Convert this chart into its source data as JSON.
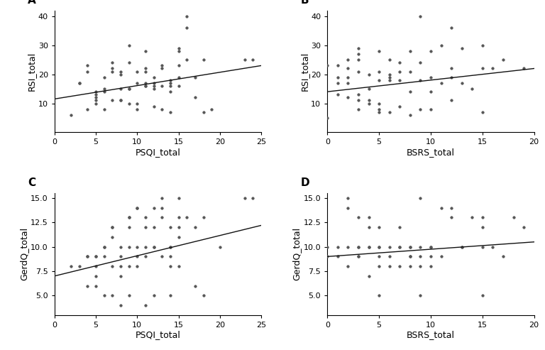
{
  "panel_A": {
    "label": "A",
    "xlabel": "PSQI_total",
    "ylabel": "RSI_total",
    "xlim": [
      0,
      25
    ],
    "ylim": [
      0,
      42
    ],
    "xticks": [
      0,
      5,
      10,
      15,
      20,
      25
    ],
    "yticks": [
      10,
      20,
      30,
      40
    ],
    "x": [
      2,
      3,
      3,
      4,
      4,
      4,
      5,
      5,
      5,
      5,
      5,
      6,
      6,
      6,
      6,
      7,
      7,
      7,
      7,
      8,
      8,
      8,
      8,
      8,
      9,
      9,
      9,
      9,
      9,
      10,
      10,
      10,
      10,
      11,
      11,
      11,
      11,
      11,
      11,
      12,
      12,
      12,
      12,
      12,
      13,
      13,
      13,
      13,
      14,
      14,
      14,
      14,
      14,
      15,
      15,
      15,
      15,
      15,
      16,
      16,
      16,
      17,
      17,
      18,
      18,
      19,
      23,
      24
    ],
    "y": [
      6,
      17,
      17,
      23,
      21,
      8,
      14,
      13,
      12,
      11,
      10,
      19,
      15,
      14,
      8,
      24,
      22,
      21,
      11,
      21,
      20,
      15,
      11,
      11,
      30,
      24,
      15,
      15,
      10,
      21,
      17,
      10,
      8,
      28,
      22,
      21,
      17,
      16,
      16,
      19,
      17,
      16,
      15,
      9,
      23,
      22,
      16,
      8,
      18,
      17,
      16,
      14,
      7,
      29,
      28,
      23,
      19,
      16,
      40,
      36,
      25,
      19,
      12,
      25,
      7,
      8,
      25,
      25
    ],
    "fit_x": [
      0,
      25
    ],
    "fit_y": [
      11.5,
      23.0
    ]
  },
  "panel_B": {
    "label": "B",
    "xlabel": "BSRS_total",
    "ylabel": "RSI_total",
    "xlim": [
      0,
      20
    ],
    "ylim": [
      0,
      42
    ],
    "xticks": [
      0,
      5,
      10,
      15,
      20
    ],
    "yticks": [
      10,
      20,
      30,
      40
    ],
    "x": [
      0,
      0,
      1,
      1,
      1,
      1,
      2,
      2,
      2,
      2,
      2,
      3,
      3,
      3,
      3,
      3,
      3,
      3,
      4,
      4,
      4,
      4,
      5,
      5,
      5,
      5,
      5,
      5,
      6,
      6,
      6,
      6,
      6,
      7,
      7,
      7,
      7,
      8,
      8,
      8,
      8,
      9,
      9,
      9,
      9,
      10,
      10,
      10,
      10,
      11,
      11,
      12,
      12,
      12,
      12,
      13,
      13,
      14,
      15,
      15,
      15,
      16,
      17,
      19
    ],
    "y": [
      23,
      5,
      23,
      19,
      17,
      13,
      25,
      22,
      19,
      17,
      12,
      29,
      27,
      25,
      21,
      13,
      11,
      8,
      20,
      15,
      11,
      10,
      28,
      21,
      18,
      10,
      8,
      7,
      25,
      20,
      19,
      18,
      7,
      24,
      21,
      18,
      9,
      28,
      21,
      14,
      6,
      40,
      24,
      18,
      8,
      28,
      19,
      14,
      8,
      30,
      17,
      36,
      22,
      19,
      11,
      29,
      17,
      15,
      30,
      22,
      7,
      22,
      25,
      22
    ],
    "fit_x": [
      0,
      20
    ],
    "fit_y": [
      14.0,
      22.0
    ]
  },
  "panel_C": {
    "label": "C",
    "xlabel": "PSQI_total",
    "ylabel": "GerdQ_total",
    "xlim": [
      0,
      25
    ],
    "ylim": [
      3.0,
      15.5
    ],
    "xticks": [
      0,
      5,
      10,
      15,
      20,
      25
    ],
    "yticks": [
      5.0,
      7.5,
      10.0,
      12.5,
      15.0
    ],
    "x": [
      2,
      3,
      4,
      4,
      4,
      5,
      5,
      5,
      5,
      5,
      6,
      6,
      6,
      6,
      7,
      7,
      7,
      7,
      7,
      8,
      8,
      8,
      8,
      8,
      9,
      9,
      9,
      9,
      9,
      9,
      10,
      10,
      10,
      10,
      10,
      11,
      11,
      11,
      11,
      11,
      12,
      12,
      12,
      12,
      12,
      13,
      13,
      13,
      13,
      14,
      14,
      14,
      14,
      14,
      14,
      15,
      15,
      15,
      15,
      15,
      16,
      17,
      17,
      18,
      18,
      20,
      23,
      24
    ],
    "y": [
      8,
      8,
      9,
      9,
      6,
      9,
      9,
      8,
      7,
      6,
      10,
      10,
      9,
      5,
      12,
      12,
      11,
      8,
      5,
      10,
      9,
      8,
      7,
      4,
      13,
      13,
      12,
      10,
      8,
      5,
      14,
      14,
      10,
      9,
      8,
      13,
      12,
      10,
      9,
      4,
      14,
      12,
      10,
      10,
      5,
      15,
      14,
      13,
      9,
      12,
      10,
      10,
      9,
      8,
      5,
      15,
      13,
      12,
      11,
      8,
      13,
      12,
      6,
      13,
      5,
      10,
      15,
      15
    ],
    "fit_x": [
      0,
      25
    ],
    "fit_y": [
      7.0,
      12.2
    ]
  },
  "panel_D": {
    "label": "D",
    "xlabel": "BSRS_total",
    "ylabel": "GerdQ_total",
    "xlim": [
      0,
      20
    ],
    "ylim": [
      3.0,
      15.5
    ],
    "xticks": [
      0,
      5,
      10,
      15,
      20
    ],
    "yticks": [
      5.0,
      7.5,
      10.0,
      12.5,
      15.0
    ],
    "x": [
      0,
      0,
      1,
      1,
      2,
      2,
      2,
      2,
      3,
      3,
      3,
      3,
      3,
      4,
      4,
      4,
      4,
      4,
      5,
      5,
      5,
      5,
      5,
      5,
      6,
      6,
      6,
      7,
      7,
      7,
      7,
      8,
      8,
      8,
      8,
      8,
      9,
      9,
      9,
      9,
      9,
      10,
      10,
      10,
      10,
      11,
      11,
      12,
      12,
      13,
      13,
      14,
      15,
      15,
      15,
      15,
      16,
      17,
      18,
      19
    ],
    "y": [
      10,
      9,
      10,
      9,
      15,
      14,
      10,
      8,
      13,
      10,
      10,
      9,
      9,
      13,
      12,
      10,
      10,
      7,
      12,
      10,
      10,
      9,
      8,
      5,
      10,
      9,
      8,
      12,
      10,
      10,
      8,
      10,
      10,
      9,
      9,
      8,
      15,
      10,
      9,
      8,
      5,
      10,
      10,
      9,
      8,
      14,
      9,
      14,
      13,
      10,
      10,
      13,
      13,
      12,
      10,
      5,
      10,
      9,
      13,
      12
    ],
    "fit_x": [
      0,
      20
    ],
    "fit_y": [
      9.0,
      10.5
    ]
  },
  "marker_size": 2.5,
  "marker_color": "#555555",
  "line_color": "#111111",
  "line_width": 1.0,
  "label_fontsize": 9,
  "tick_fontsize": 8,
  "panel_label_fontsize": 11,
  "background_color": "#ffffff"
}
